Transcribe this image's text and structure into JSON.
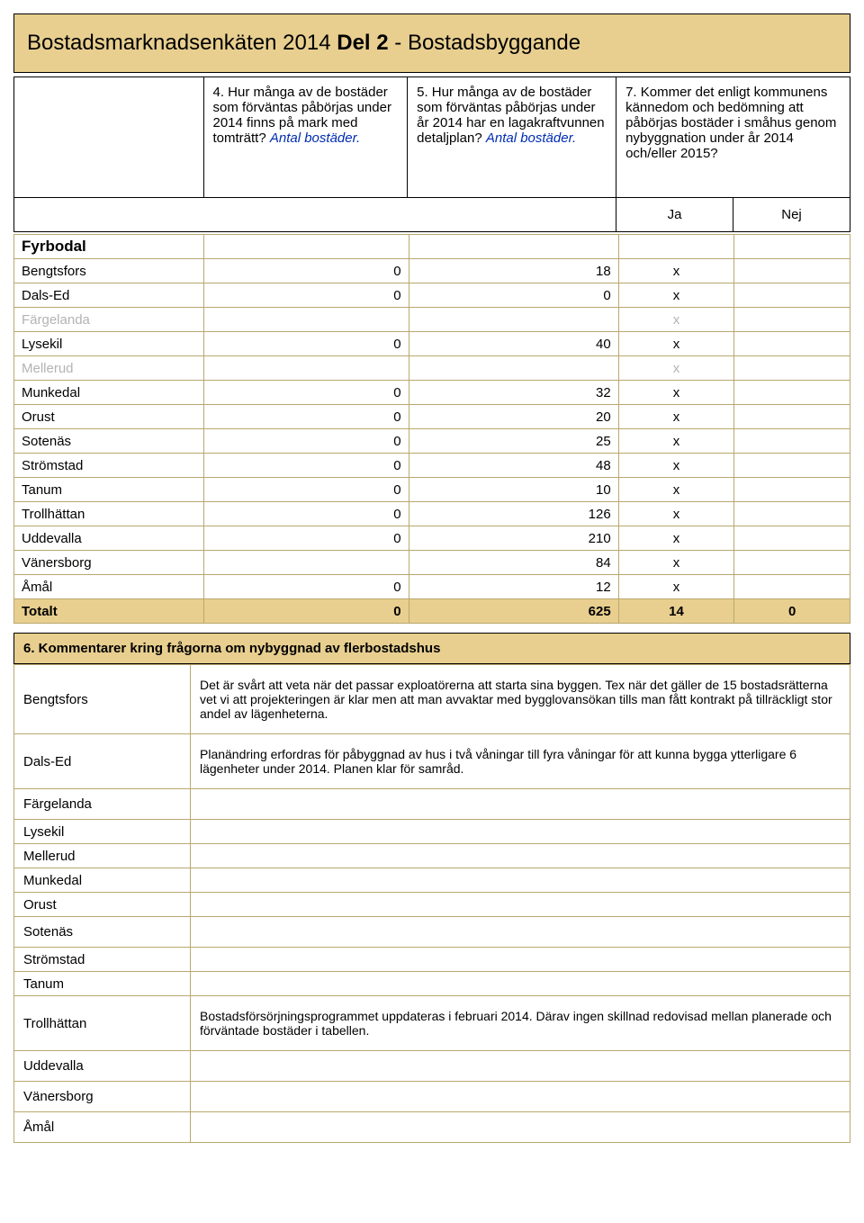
{
  "title": {
    "prefix": "Bostadsmarknadsenkäten 2014 ",
    "bold": "Del 2",
    "suffix": " - Bostadsbyggande"
  },
  "questions": {
    "q4": "4. Hur många av de bostäder som förväntas påbörjas under 2014 finns på mark med tomträtt? ",
    "q4_blue": "Antal bostäder.",
    "q5": "5. Hur många av de bostäder som förväntas påbörjas under år 2014 har en lagakraftvunnen detaljplan? ",
    "q5_blue": "Antal bostäder.",
    "q7": "7. Kommer det enligt kommunens kännedom och bedömning att påbörjas bostäder i småhus genom nybyggnation under år 2014 och/eller 2015?"
  },
  "subhead": {
    "ja": "Ja",
    "nej": "Nej"
  },
  "section": "Fyrbodal",
  "rows": [
    {
      "name": "Bengtsfors",
      "c4": "0",
      "c5": "18",
      "ja": "x",
      "nej": "",
      "gray": false
    },
    {
      "name": "Dals-Ed",
      "c4": "0",
      "c5": "0",
      "ja": "x",
      "nej": "",
      "gray": false
    },
    {
      "name": "Färgelanda",
      "c4": "",
      "c5": "",
      "ja": "x",
      "nej": "",
      "gray": true
    },
    {
      "name": "Lysekil",
      "c4": "0",
      "c5": "40",
      "ja": "x",
      "nej": "",
      "gray": false
    },
    {
      "name": "Mellerud",
      "c4": "",
      "c5": "",
      "ja": "x",
      "nej": "",
      "gray": true
    },
    {
      "name": "Munkedal",
      "c4": "0",
      "c5": "32",
      "ja": "x",
      "nej": "",
      "gray": false
    },
    {
      "name": "Orust",
      "c4": "0",
      "c5": "20",
      "ja": "x",
      "nej": "",
      "gray": false
    },
    {
      "name": "Sotenäs",
      "c4": "0",
      "c5": "25",
      "ja": "x",
      "nej": "",
      "gray": false
    },
    {
      "name": "Strömstad",
      "c4": "0",
      "c5": "48",
      "ja": "x",
      "nej": "",
      "gray": false
    },
    {
      "name": "Tanum",
      "c4": "0",
      "c5": "10",
      "ja": "x",
      "nej": "",
      "gray": false
    },
    {
      "name": "Trollhättan",
      "c4": "0",
      "c5": "126",
      "ja": "x",
      "nej": "",
      "gray": false
    },
    {
      "name": "Uddevalla",
      "c4": "0",
      "c5": "210",
      "ja": "x",
      "nej": "",
      "gray": false
    },
    {
      "name": "Vänersborg",
      "c4": "",
      "c5": "84",
      "ja": "x",
      "nej": "",
      "gray": false
    },
    {
      "name": "Åmål",
      "c4": "0",
      "c5": "12",
      "ja": "x",
      "nej": "",
      "gray": false
    }
  ],
  "total": {
    "name": "Totalt",
    "c4": "0",
    "c5": "625",
    "ja": "14",
    "nej": "0"
  },
  "commentHeader": "6. Kommentarer kring frågorna om nybyggnad av flerbostadshus",
  "comments": [
    {
      "name": "Bengtsfors",
      "text": "Det är svårt att veta när det passar exploatörerna att starta sina byggen. Tex när det gäller de 15 bostadsrätterna vet vi att projekteringen är klar men att man avvaktar med bygglovansökan tills man fått kontrakt på tillräckligt stor andel av lägenheterna.",
      "tight": false,
      "tall": true
    },
    {
      "name": "Dals-Ed",
      "text": "Planändring erfordras för påbyggnad av hus i två våningar till fyra våningar för att kunna bygga ytterligare 6 lägenheter under 2014. Planen klar för samråd.",
      "tight": false,
      "tall": true
    },
    {
      "name": "Färgelanda",
      "text": "",
      "tight": false,
      "tall": false
    },
    {
      "name": "Lysekil",
      "text": "",
      "tight": true,
      "tall": false
    },
    {
      "name": "Mellerud",
      "text": "",
      "tight": true,
      "tall": false
    },
    {
      "name": "Munkedal",
      "text": "",
      "tight": true,
      "tall": false
    },
    {
      "name": "Orust",
      "text": "",
      "tight": true,
      "tall": false
    },
    {
      "name": "Sotenäs",
      "text": "",
      "tight": false,
      "tall": false
    },
    {
      "name": "Strömstad",
      "text": "",
      "tight": true,
      "tall": false
    },
    {
      "name": "Tanum",
      "text": "",
      "tight": true,
      "tall": false
    },
    {
      "name": "Trollhättan",
      "text": "Bostadsförsörjningsprogrammet uppdateras i februari 2014. Därav ingen skillnad redovisad mellan planerade och förväntade bostäder i tabellen.",
      "tight": false,
      "tall": true
    },
    {
      "name": "Uddevalla",
      "text": "",
      "tight": false,
      "tall": false
    },
    {
      "name": "Vänersborg",
      "text": "",
      "tight": false,
      "tall": false
    },
    {
      "name": "Åmål",
      "text": "",
      "tight": false,
      "tall": false
    }
  ],
  "colors": {
    "header_bg": "#e8cf8f",
    "grid": "#b9a86f",
    "blue": "#002db3",
    "gray": "#b3b3b3"
  }
}
